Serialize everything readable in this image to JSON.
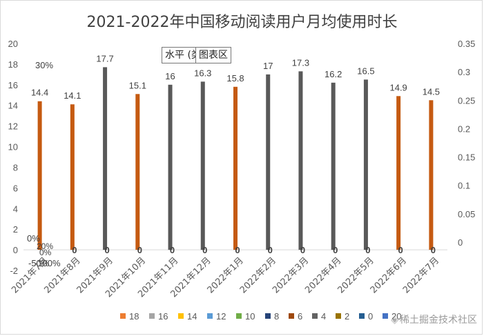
{
  "chart_data": {
    "type": "bar",
    "title": "2021-2022年中国移动阅读用户月均使用时长",
    "categories": [
      "2021年7月",
      "2021年8月",
      "2021年9月",
      "2021年10月",
      "2021年11月",
      "2021年12月",
      "2022年1月",
      "2022年2月",
      "2022年3月",
      "2022年4月",
      "2022年5月",
      "2022年6月",
      "2022年7月"
    ],
    "series": [
      {
        "name": "6",
        "color": "#C55A11",
        "values": [
          14.4,
          14.1,
          null,
          15.1,
          null,
          null,
          15.8,
          null,
          null,
          null,
          null,
          14.9,
          14.5
        ]
      },
      {
        "name": "4",
        "color": "#595959",
        "values": [
          null,
          null,
          17.7,
          null,
          16,
          16.3,
          null,
          17,
          17.3,
          16.2,
          16.5,
          null,
          null
        ]
      }
    ],
    "zero_labels": [
      "",
      "0",
      "0",
      "0",
      "0",
      "0",
      "0",
      "0",
      "0",
      "0",
      "0",
      "0",
      "0"
    ],
    "y_left": {
      "min": -2,
      "max": 20,
      "ticks": [
        "-2",
        "0",
        "2",
        "4",
        "6",
        "8",
        "10",
        "12",
        "14",
        "16",
        "18",
        "20"
      ]
    },
    "y_right": {
      "min": -0.05,
      "max": 0.35,
      "ticks": [
        "0",
        "0.05",
        "0.1",
        "0.15",
        "0.2",
        "0.25",
        "0.3",
        "0.35"
      ]
    },
    "overlap_labels": [
      "30%",
      "0%",
      "-50%",
      "-100%",
      "20%",
      "0%"
    ],
    "legend": {
      "position": "bottom",
      "items": [
        {
          "label": "18",
          "color": "#ED7D31"
        },
        {
          "label": "16",
          "color": "#A5A5A5"
        },
        {
          "label": "14",
          "color": "#FFC000"
        },
        {
          "label": "12",
          "color": "#5B9BD5"
        },
        {
          "label": "10",
          "color": "#70AD47"
        },
        {
          "label": "8",
          "color": "#264478"
        },
        {
          "label": "6",
          "color": "#9E480E"
        },
        {
          "label": "4",
          "color": "#636363"
        },
        {
          "label": "2",
          "color": "#997300"
        },
        {
          "label": "0",
          "color": "#255E91"
        },
        {
          "label": "20",
          "color": "#4472C4"
        }
      ]
    },
    "grid": false
  },
  "tooltips": {
    "axis_hint": "水平 (类",
    "plot_area": "图表区"
  },
  "watermark": "稀土掘金技术社区"
}
